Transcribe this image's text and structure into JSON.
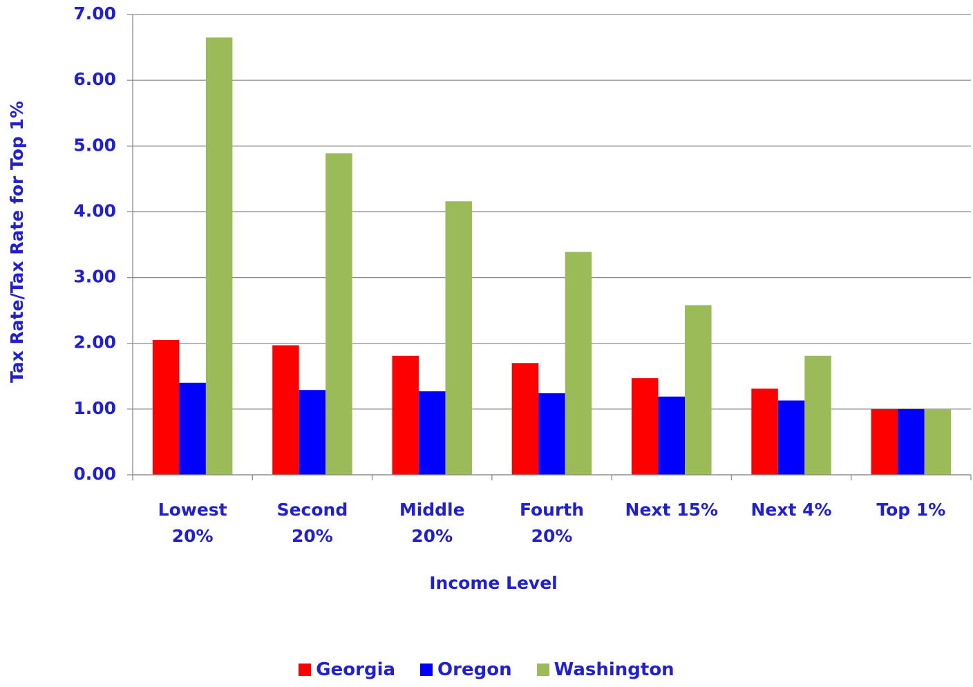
{
  "chart_data": {
    "type": "bar",
    "x_label": "Income Level",
    "y_label": "Tax Rate/Tax Rate for Top 1%",
    "categories": [
      "Lowest\n20%",
      "Second\n20%",
      "Middle\n20%",
      "Fourth\n20%",
      "Next 15%",
      "Next 4%",
      "Top 1%"
    ],
    "series": [
      {
        "name": "Georgia",
        "color": "#ff0000",
        "values": [
          2.05,
          1.97,
          1.81,
          1.7,
          1.47,
          1.31,
          1.0
        ]
      },
      {
        "name": "Oregon",
        "color": "#0000ff",
        "values": [
          1.4,
          1.29,
          1.27,
          1.24,
          1.19,
          1.13,
          1.0
        ]
      },
      {
        "name": "Washington",
        "color": "#9bbb59",
        "values": [
          6.65,
          4.89,
          4.16,
          3.39,
          2.58,
          1.81,
          1.0
        ]
      }
    ],
    "ylim": [
      0,
      7
    ],
    "yticks": [
      {
        "value": 0,
        "label": "0.00"
      },
      {
        "value": 1,
        "label": "1.00"
      },
      {
        "value": 2,
        "label": "2.00"
      },
      {
        "value": 3,
        "label": "3.00"
      },
      {
        "value": 4,
        "label": "4.00"
      },
      {
        "value": 5,
        "label": "5.00"
      },
      {
        "value": 6,
        "label": "6.00"
      },
      {
        "value": 7,
        "label": "7.00"
      }
    ],
    "grid": true,
    "legend": "bottom"
  }
}
